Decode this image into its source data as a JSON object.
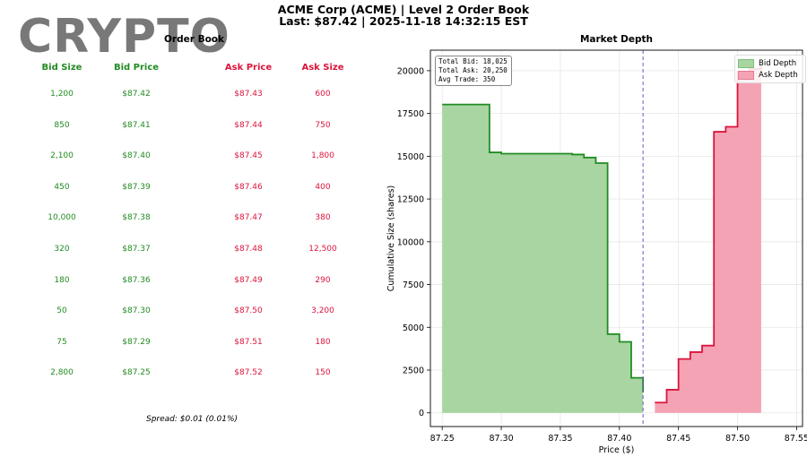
{
  "header": {
    "title": "ACME Corp (ACME) | Level 2 Order Book",
    "subtitle": "Last: $87.42 | 2025-11-18 14:32:15 EST"
  },
  "watermark": "CRYPTO",
  "order_book": {
    "title": "Order Book",
    "columns": [
      "Bid Size",
      "Bid Price",
      "Ask Price",
      "Ask Size"
    ],
    "rows": [
      {
        "bid_size": "1,200",
        "bid_price": "$87.42",
        "ask_price": "$87.43",
        "ask_size": "600"
      },
      {
        "bid_size": "850",
        "bid_price": "$87.41",
        "ask_price": "$87.44",
        "ask_size": "750"
      },
      {
        "bid_size": "2,100",
        "bid_price": "$87.40",
        "ask_price": "$87.45",
        "ask_size": "1,800"
      },
      {
        "bid_size": "450",
        "bid_price": "$87.39",
        "ask_price": "$87.46",
        "ask_size": "400"
      },
      {
        "bid_size": "10,000",
        "bid_price": "$87.38",
        "ask_price": "$87.47",
        "ask_size": "380"
      },
      {
        "bid_size": "320",
        "bid_price": "$87.37",
        "ask_price": "$87.48",
        "ask_size": "12,500"
      },
      {
        "bid_size": "180",
        "bid_price": "$87.36",
        "ask_price": "$87.49",
        "ask_size": "290"
      },
      {
        "bid_size": "50",
        "bid_price": "$87.30",
        "ask_price": "$87.50",
        "ask_size": "3,200"
      },
      {
        "bid_size": "75",
        "bid_price": "$87.29",
        "ask_price": "$87.51",
        "ask_size": "180"
      },
      {
        "bid_size": "2,800",
        "bid_price": "$87.25",
        "ask_price": "$87.52",
        "ask_size": "150"
      }
    ],
    "spread": "Spread: $0.01 (0.01%)"
  },
  "colors": {
    "bid": "#228b22",
    "ask": "#dc143c",
    "bid_fill": "#a8d5a2",
    "ask_fill": "#f4a3b4",
    "mid_line": "#6a5acd"
  },
  "chart_data": {
    "type": "area",
    "title": "Market Depth",
    "xlabel": "Price ($)",
    "ylabel": "Cumulative Size (shares)",
    "xlim": [
      87.24,
      87.555
    ],
    "ylim": [
      -800,
      21200
    ],
    "xticks": [
      87.25,
      87.3,
      87.35,
      87.4,
      87.45,
      87.5,
      87.55
    ],
    "xtick_labels": [
      "87.25",
      "87.30",
      "87.35",
      "87.40",
      "87.45",
      "87.50",
      "87.55"
    ],
    "yticks": [
      0,
      2500,
      5000,
      7500,
      10000,
      12500,
      15000,
      17500,
      20000
    ],
    "ytick_labels": [
      "0",
      "2500",
      "5000",
      "7500",
      "10000",
      "12500",
      "15000",
      "17500",
      "20000"
    ],
    "grid": true,
    "last_price": 87.42,
    "legend_position": "top-right",
    "series": [
      {
        "name": "Bid Depth",
        "price": [
          87.42,
          87.41,
          87.4,
          87.39,
          87.38,
          87.37,
          87.36,
          87.3,
          87.29,
          87.25
        ],
        "cumulative": [
          1200,
          2050,
          4150,
          4600,
          14600,
          14920,
          15100,
          15150,
          15225,
          18025
        ]
      },
      {
        "name": "Ask Depth",
        "price": [
          87.43,
          87.44,
          87.45,
          87.46,
          87.47,
          87.48,
          87.49,
          87.5,
          87.51,
          87.52
        ],
        "cumulative": [
          600,
          1350,
          3150,
          3550,
          3930,
          16430,
          16720,
          19920,
          20100,
          20250
        ]
      }
    ],
    "stats": [
      "Total Bid: 18,025",
      "Total Ask: 20,250",
      "Avg Trade: 350"
    ]
  }
}
